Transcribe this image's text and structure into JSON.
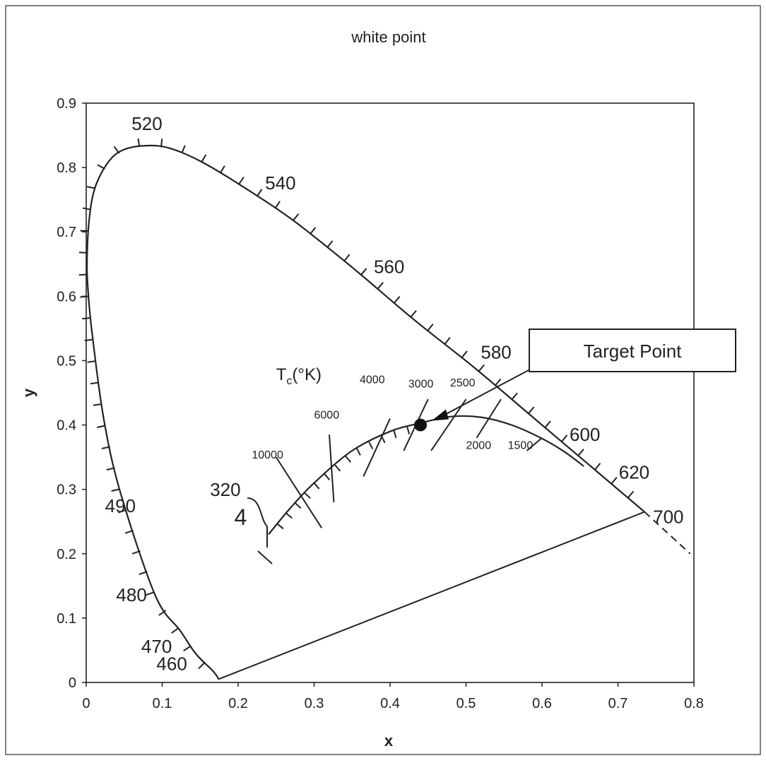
{
  "chart_data": {
    "type": "scatter",
    "title": "white point",
    "xlabel": "x",
    "ylabel": "y",
    "xlim": [
      0,
      0.8
    ],
    "ylim": [
      0,
      0.9
    ],
    "x_ticks": [
      "0",
      "0.1",
      "0.2",
      "0.3",
      "0.4",
      "0.5",
      "0.6",
      "0.7",
      "0.8"
    ],
    "y_ticks": [
      "0",
      "0.1",
      "0.2",
      "0.3",
      "0.4",
      "0.5",
      "0.6",
      "0.7",
      "0.8",
      "0.9"
    ],
    "grid": false,
    "spectral_locus": {
      "x": [
        0.174,
        0.172,
        0.165,
        0.144,
        0.124,
        0.091,
        0.045,
        0.023,
        0.008,
        0.003,
        0.001,
        0.004,
        0.012,
        0.03,
        0.05,
        0.08,
        0.11,
        0.15,
        0.2,
        0.27,
        0.35,
        0.43,
        0.51,
        0.585,
        0.66,
        0.735
      ],
      "y": [
        0.005,
        0.01,
        0.02,
        0.045,
        0.08,
        0.135,
        0.295,
        0.41,
        0.54,
        0.6,
        0.65,
        0.72,
        0.77,
        0.81,
        0.828,
        0.834,
        0.83,
        0.81,
        0.775,
        0.72,
        0.645,
        0.565,
        0.49,
        0.415,
        0.34,
        0.265
      ]
    },
    "purple_line": {
      "x": [
        0.174,
        0.735
      ],
      "y": [
        0.005,
        0.265
      ]
    },
    "extrapolation": {
      "x": [
        0.735,
        0.795
      ],
      "y": [
        0.265,
        0.2
      ]
    },
    "wavelength_labels": [
      {
        "label": "520",
        "x": 0.08,
        "y": 0.834
      },
      {
        "label": "540",
        "x": 0.23,
        "y": 0.755
      },
      {
        "label": "560",
        "x": 0.373,
        "y": 0.625
      },
      {
        "label": "580",
        "x": 0.512,
        "y": 0.49
      },
      {
        "label": "600",
        "x": 0.627,
        "y": 0.373
      },
      {
        "label": "620",
        "x": 0.69,
        "y": 0.31
      },
      {
        "label": "700",
        "x": 0.735,
        "y": 0.265
      },
      {
        "label": "490",
        "x": 0.045,
        "y": 0.295
      },
      {
        "label": "480",
        "x": 0.091,
        "y": 0.135
      },
      {
        "label": "470",
        "x": 0.124,
        "y": 0.055
      },
      {
        "label": "460",
        "x": 0.144,
        "y": 0.03
      }
    ],
    "planckian_locus": {
      "label": "Tc(°K)",
      "x": [
        0.24,
        0.268,
        0.3,
        0.35,
        0.4,
        0.44,
        0.48,
        0.52,
        0.56,
        0.6,
        0.63,
        0.655
      ],
      "y": [
        0.23,
        0.27,
        0.31,
        0.36,
        0.39,
        0.403,
        0.413,
        0.412,
        0.4,
        0.379,
        0.358,
        0.336
      ]
    },
    "isotherms": [
      {
        "label": "10000",
        "x": [
          0.25,
          0.31
        ],
        "y": [
          0.35,
          0.24
        ]
      },
      {
        "label": "6000",
        "x": [
          0.32,
          0.326
        ],
        "y": [
          0.385,
          0.28
        ]
      },
      {
        "label": "4000",
        "x": [
          0.4,
          0.365
        ],
        "y": [
          0.41,
          0.32
        ]
      },
      {
        "label": "3000",
        "x": [
          0.45,
          0.418
        ],
        "y": [
          0.44,
          0.36
        ]
      },
      {
        "label": "2500",
        "x": [
          0.5,
          0.454
        ],
        "y": [
          0.44,
          0.36
        ]
      },
      {
        "label": "2000",
        "x": [
          0.546,
          0.514
        ],
        "y": [
          0.44,
          0.38
        ]
      },
      {
        "label": "1500",
        "x": [
          0.6,
          0.58
        ],
        "y": [
          0.38,
          0.36
        ]
      }
    ],
    "isotherm_labels": [
      {
        "label": "10000",
        "x": 0.218,
        "y": 0.348
      },
      {
        "label": "6000",
        "x": 0.3,
        "y": 0.41
      },
      {
        "label": "4000",
        "x": 0.36,
        "y": 0.465
      },
      {
        "label": "3000",
        "x": 0.424,
        "y": 0.458
      },
      {
        "label": "2500",
        "x": 0.479,
        "y": 0.46
      },
      {
        "label": "2000",
        "x": 0.5,
        "y": 0.363
      },
      {
        "label": "1500",
        "x": 0.555,
        "y": 0.363
      }
    ],
    "tc_label": {
      "base": "T",
      "subscript": "c",
      "suffix": "(°K)",
      "x": 0.25,
      "y": 0.47
    },
    "extra_labels": [
      {
        "label": "320",
        "x": 0.163,
        "y": 0.29
      },
      {
        "label": "4",
        "x": 0.195,
        "y": 0.245
      }
    ],
    "target_point": {
      "x": 0.44,
      "y": 0.4
    },
    "annotation": {
      "text": "Target Point",
      "x": 0.585,
      "y": 0.48
    }
  }
}
